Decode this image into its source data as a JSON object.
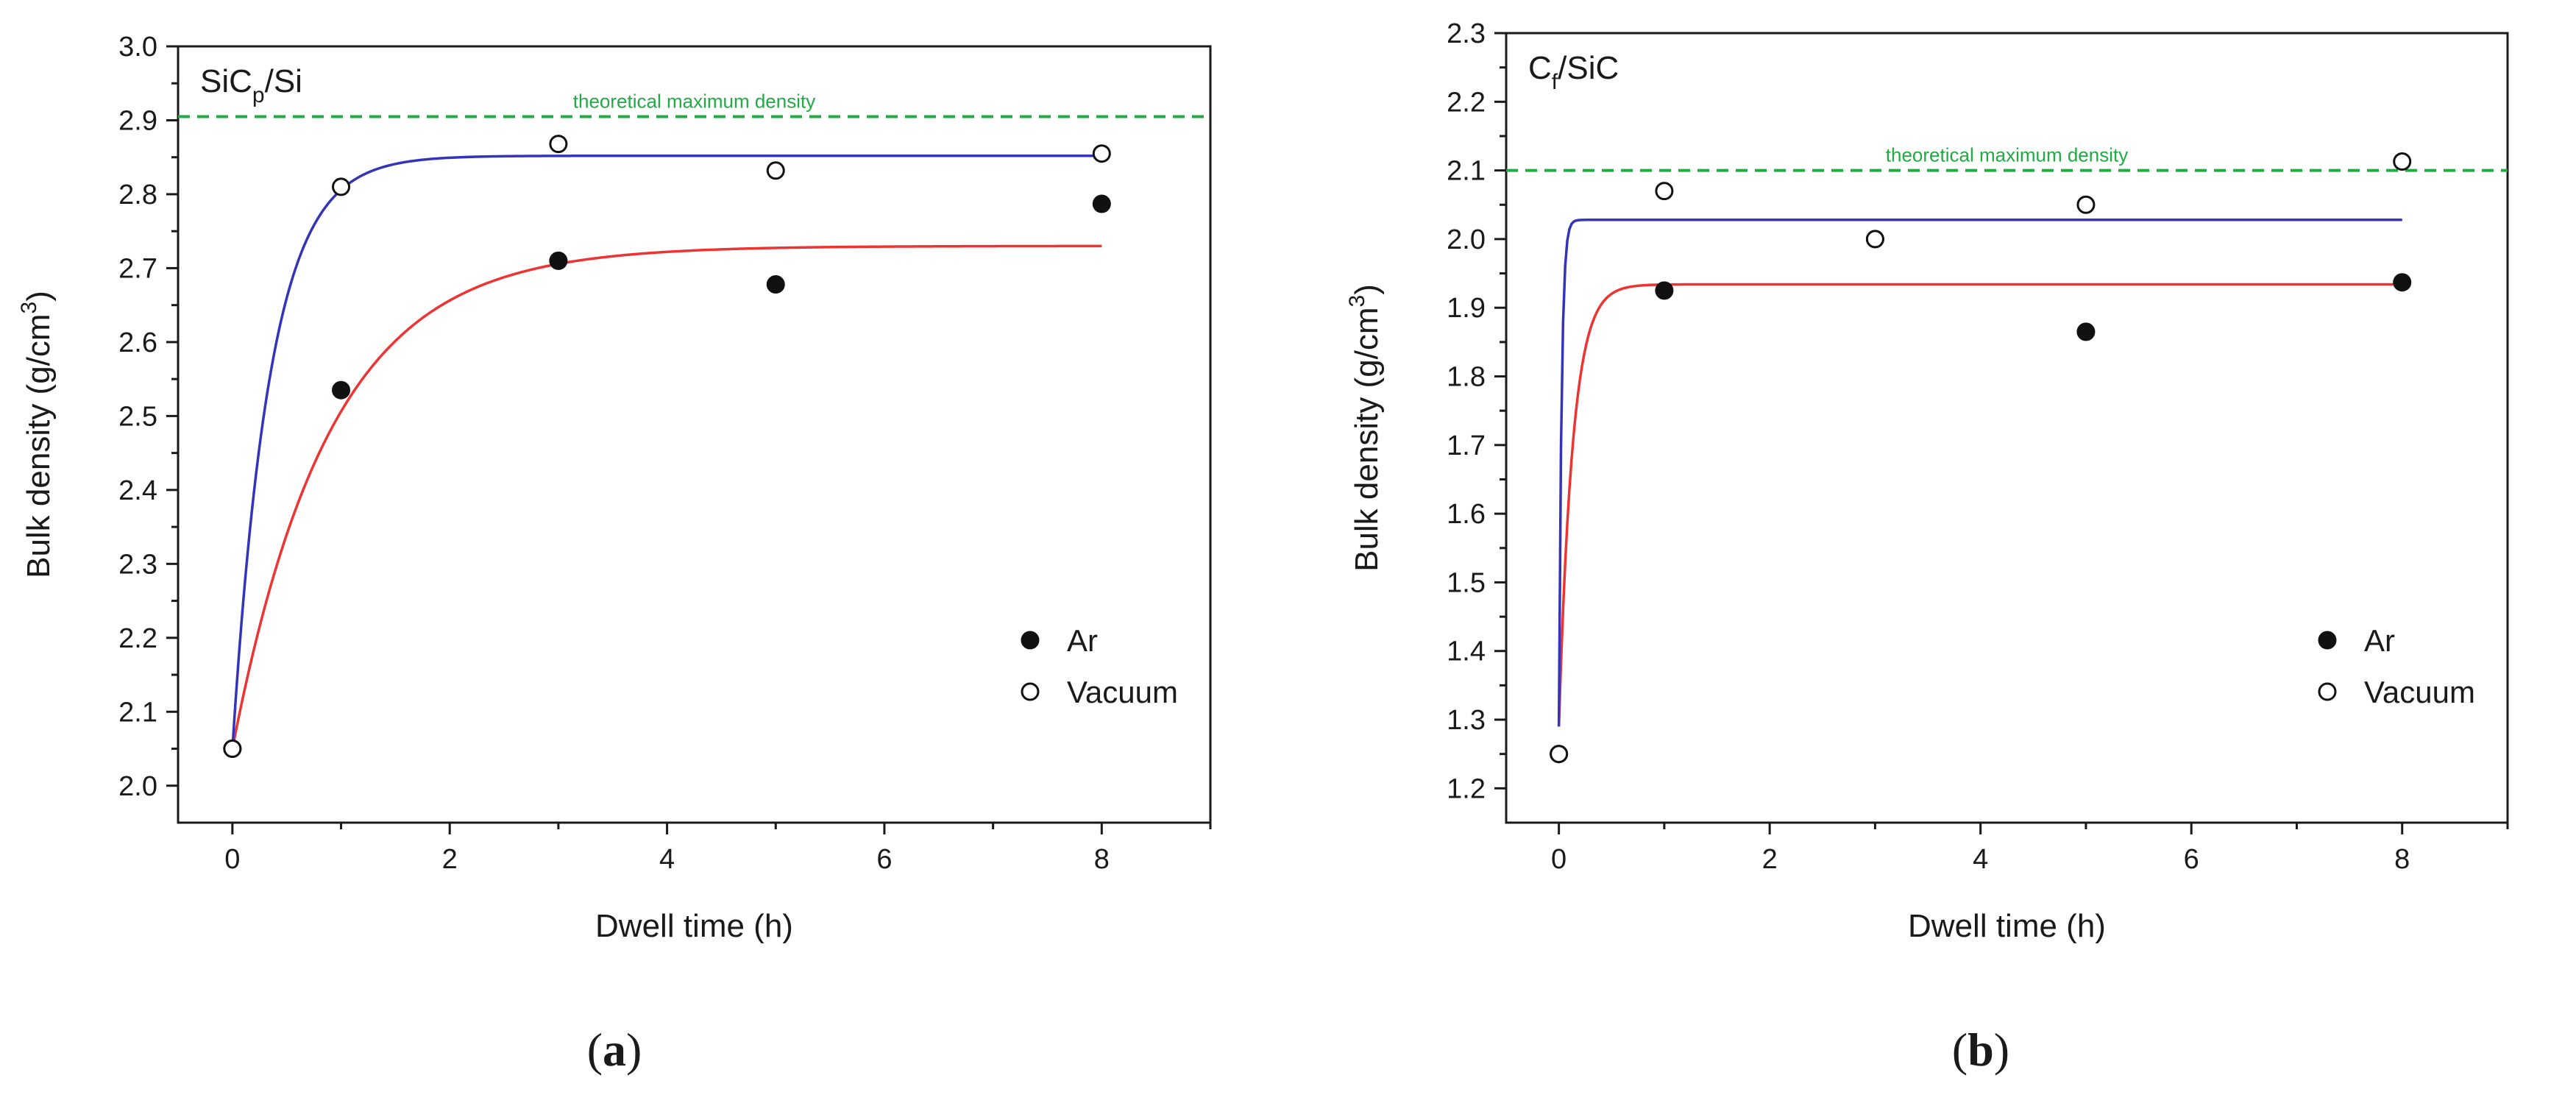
{
  "chart_data": [
    {
      "type": "scatter",
      "panel_label": "a",
      "title": "SiCp/Si",
      "title_main": "SiC",
      "title_sub": "p",
      "title_tail": "/Si",
      "xlabel": "Dwell time (h)",
      "ylabel_main": "Bulk density (g/cm",
      "ylabel_sup": "3",
      "ylabel_tail": ")",
      "xlim": [
        -0.5,
        9.0
      ],
      "ylim": [
        1.95,
        3.0
      ],
      "x_ticks": [
        0,
        2,
        4,
        6,
        8
      ],
      "x_tick_labels": [
        "0",
        "2",
        "4",
        "6",
        "8"
      ],
      "y_ticks": [
        2.0,
        2.1,
        2.2,
        2.3,
        2.4,
        2.5,
        2.6,
        2.7,
        2.8,
        2.9,
        3.0
      ],
      "y_tick_labels": [
        "2.0",
        "2.1",
        "2.2",
        "2.3",
        "2.4",
        "2.5",
        "2.6",
        "2.7",
        "2.8",
        "2.9",
        "3.0"
      ],
      "grid": false,
      "reference_line": {
        "y": 2.905,
        "label": "theoretical maximum density",
        "color": "#22aa44"
      },
      "legend_position": "bottom-right",
      "series": [
        {
          "name": "Ar",
          "marker": "filled-circle",
          "x": [
            0,
            1,
            3,
            5,
            8
          ],
          "y": [
            2.05,
            2.535,
            2.71,
            2.678,
            2.787
          ]
        },
        {
          "name": "Vacuum",
          "marker": "open-circle",
          "x": [
            0,
            1,
            3,
            5,
            8
          ],
          "y": [
            2.05,
            2.81,
            2.868,
            2.832,
            2.855
          ]
        }
      ],
      "fit_curves": [
        {
          "for": "Ar",
          "color": "#ee3333",
          "model": "y = ymax - (ymax - y0) * exp(-x / tau)",
          "y0": 2.05,
          "ymax": 2.73,
          "tau": 0.9,
          "x_range": [
            0,
            8
          ]
        },
        {
          "for": "Vacuum",
          "color": "#3333bb",
          "model": "y = ymax - (ymax - y0) * exp(-x / tau)",
          "y0": 2.05,
          "ymax": 2.852,
          "tau": 0.35,
          "x_range": [
            0,
            8
          ]
        }
      ]
    },
    {
      "type": "scatter",
      "panel_label": "b",
      "title": "Cf/SiC",
      "title_main": "C",
      "title_sub": "f",
      "title_tail": "/SiC",
      "xlabel": "Dwell time (h)",
      "ylabel_main": "Bulk density (g/cm",
      "ylabel_sup": "3",
      "ylabel_tail": ")",
      "xlim": [
        -0.5,
        9.0
      ],
      "ylim": [
        1.15,
        2.3
      ],
      "x_ticks": [
        0,
        2,
        4,
        6,
        8
      ],
      "x_tick_labels": [
        "0",
        "2",
        "4",
        "6",
        "8"
      ],
      "y_ticks": [
        1.2,
        1.3,
        1.4,
        1.5,
        1.6,
        1.7,
        1.8,
        1.9,
        2.0,
        2.1,
        2.2,
        2.3
      ],
      "y_tick_labels": [
        "1.2",
        "1.3",
        "1.4",
        "1.5",
        "1.6",
        "1.7",
        "1.8",
        "1.9",
        "2.0",
        "2.1",
        "2.2",
        "2.3"
      ],
      "grid": false,
      "reference_line": {
        "y": 2.1,
        "label": "theoretical maximum density",
        "color": "#22aa44"
      },
      "legend_position": "bottom-right",
      "series": [
        {
          "name": "Ar",
          "marker": "filled-circle",
          "x": [
            0,
            1,
            3,
            5,
            8
          ],
          "y": [
            1.25,
            1.925,
            2.0,
            1.865,
            1.937
          ]
        },
        {
          "name": "Vacuum",
          "marker": "open-circle",
          "x": [
            0,
            1,
            3,
            5,
            8
          ],
          "y": [
            1.25,
            2.07,
            2.0,
            2.05,
            2.113
          ]
        }
      ],
      "fit_curves": [
        {
          "for": "Ar",
          "color": "#ee3333",
          "model": "y = ymax - (ymax - y0) * exp(-x / tau)",
          "y0": 1.29,
          "ymax": 1.934,
          "tau": 0.13,
          "x_range": [
            0,
            8
          ]
        },
        {
          "for": "Vacuum",
          "color": "#3333bb",
          "model": "y = ymax - (ymax - y0) * exp(-x / tau)",
          "y0": 1.29,
          "ymax": 2.028,
          "tau": 0.025,
          "x_range": [
            0,
            8
          ]
        }
      ]
    }
  ]
}
